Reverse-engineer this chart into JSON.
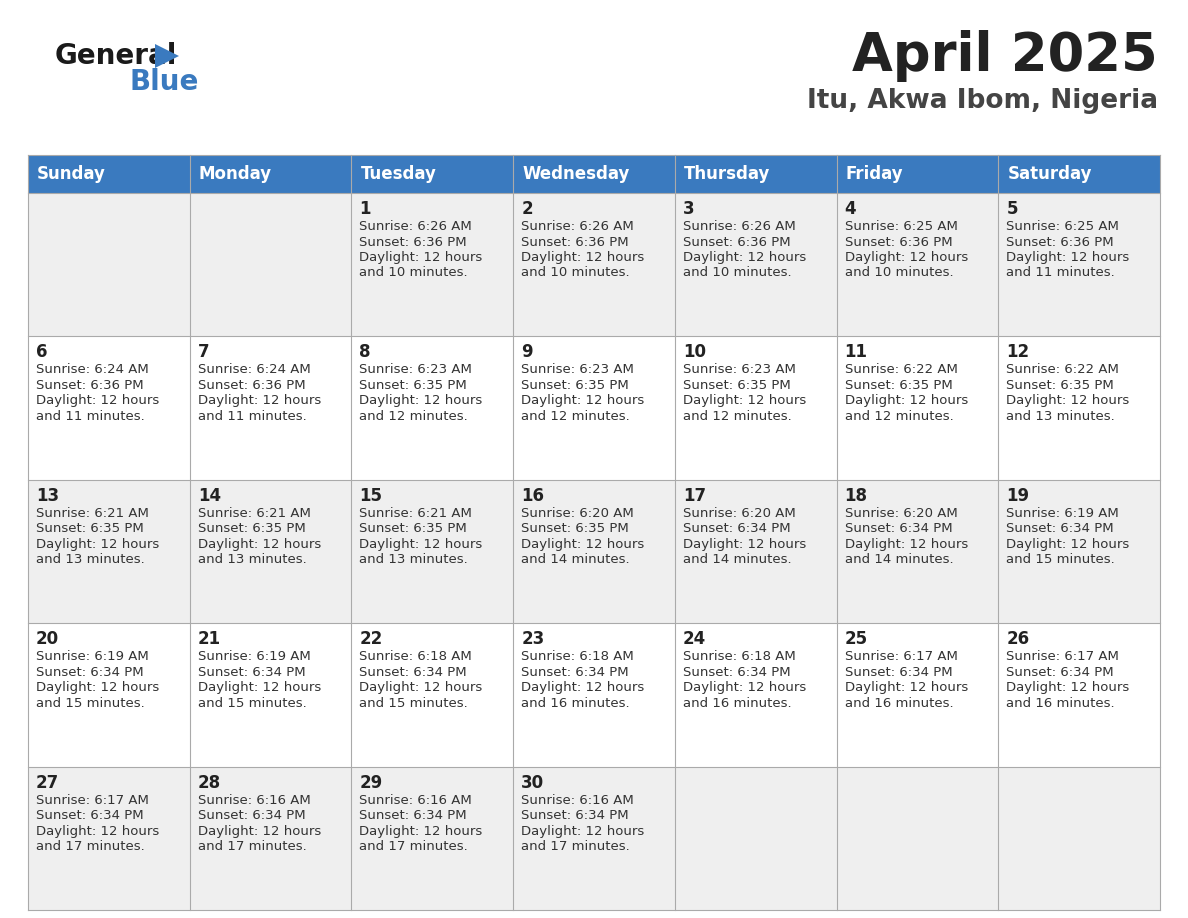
{
  "title": "April 2025",
  "subtitle": "Itu, Akwa Ibom, Nigeria",
  "header_color": "#3a7abf",
  "header_text_color": "#ffffff",
  "text_color": "#333333",
  "days_of_week": [
    "Sunday",
    "Monday",
    "Tuesday",
    "Wednesday",
    "Thursday",
    "Friday",
    "Saturday"
  ],
  "weeks": [
    [
      {
        "day": "",
        "sunrise": "",
        "sunset": "",
        "daylight1": "",
        "daylight2": ""
      },
      {
        "day": "",
        "sunrise": "",
        "sunset": "",
        "daylight1": "",
        "daylight2": ""
      },
      {
        "day": "1",
        "sunrise": "6:26 AM",
        "sunset": "6:36 PM",
        "daylight1": "Daylight: 12 hours",
        "daylight2": "and 10 minutes."
      },
      {
        "day": "2",
        "sunrise": "6:26 AM",
        "sunset": "6:36 PM",
        "daylight1": "Daylight: 12 hours",
        "daylight2": "and 10 minutes."
      },
      {
        "day": "3",
        "sunrise": "6:26 AM",
        "sunset": "6:36 PM",
        "daylight1": "Daylight: 12 hours",
        "daylight2": "and 10 minutes."
      },
      {
        "day": "4",
        "sunrise": "6:25 AM",
        "sunset": "6:36 PM",
        "daylight1": "Daylight: 12 hours",
        "daylight2": "and 10 minutes."
      },
      {
        "day": "5",
        "sunrise": "6:25 AM",
        "sunset": "6:36 PM",
        "daylight1": "Daylight: 12 hours",
        "daylight2": "and 11 minutes."
      }
    ],
    [
      {
        "day": "6",
        "sunrise": "6:24 AM",
        "sunset": "6:36 PM",
        "daylight1": "Daylight: 12 hours",
        "daylight2": "and 11 minutes."
      },
      {
        "day": "7",
        "sunrise": "6:24 AM",
        "sunset": "6:36 PM",
        "daylight1": "Daylight: 12 hours",
        "daylight2": "and 11 minutes."
      },
      {
        "day": "8",
        "sunrise": "6:23 AM",
        "sunset": "6:35 PM",
        "daylight1": "Daylight: 12 hours",
        "daylight2": "and 12 minutes."
      },
      {
        "day": "9",
        "sunrise": "6:23 AM",
        "sunset": "6:35 PM",
        "daylight1": "Daylight: 12 hours",
        "daylight2": "and 12 minutes."
      },
      {
        "day": "10",
        "sunrise": "6:23 AM",
        "sunset": "6:35 PM",
        "daylight1": "Daylight: 12 hours",
        "daylight2": "and 12 minutes."
      },
      {
        "day": "11",
        "sunrise": "6:22 AM",
        "sunset": "6:35 PM",
        "daylight1": "Daylight: 12 hours",
        "daylight2": "and 12 minutes."
      },
      {
        "day": "12",
        "sunrise": "6:22 AM",
        "sunset": "6:35 PM",
        "daylight1": "Daylight: 12 hours",
        "daylight2": "and 13 minutes."
      }
    ],
    [
      {
        "day": "13",
        "sunrise": "6:21 AM",
        "sunset": "6:35 PM",
        "daylight1": "Daylight: 12 hours",
        "daylight2": "and 13 minutes."
      },
      {
        "day": "14",
        "sunrise": "6:21 AM",
        "sunset": "6:35 PM",
        "daylight1": "Daylight: 12 hours",
        "daylight2": "and 13 minutes."
      },
      {
        "day": "15",
        "sunrise": "6:21 AM",
        "sunset": "6:35 PM",
        "daylight1": "Daylight: 12 hours",
        "daylight2": "and 13 minutes."
      },
      {
        "day": "16",
        "sunrise": "6:20 AM",
        "sunset": "6:35 PM",
        "daylight1": "Daylight: 12 hours",
        "daylight2": "and 14 minutes."
      },
      {
        "day": "17",
        "sunrise": "6:20 AM",
        "sunset": "6:34 PM",
        "daylight1": "Daylight: 12 hours",
        "daylight2": "and 14 minutes."
      },
      {
        "day": "18",
        "sunrise": "6:20 AM",
        "sunset": "6:34 PM",
        "daylight1": "Daylight: 12 hours",
        "daylight2": "and 14 minutes."
      },
      {
        "day": "19",
        "sunrise": "6:19 AM",
        "sunset": "6:34 PM",
        "daylight1": "Daylight: 12 hours",
        "daylight2": "and 15 minutes."
      }
    ],
    [
      {
        "day": "20",
        "sunrise": "6:19 AM",
        "sunset": "6:34 PM",
        "daylight1": "Daylight: 12 hours",
        "daylight2": "and 15 minutes."
      },
      {
        "day": "21",
        "sunrise": "6:19 AM",
        "sunset": "6:34 PM",
        "daylight1": "Daylight: 12 hours",
        "daylight2": "and 15 minutes."
      },
      {
        "day": "22",
        "sunrise": "6:18 AM",
        "sunset": "6:34 PM",
        "daylight1": "Daylight: 12 hours",
        "daylight2": "and 15 minutes."
      },
      {
        "day": "23",
        "sunrise": "6:18 AM",
        "sunset": "6:34 PM",
        "daylight1": "Daylight: 12 hours",
        "daylight2": "and 16 minutes."
      },
      {
        "day": "24",
        "sunrise": "6:18 AM",
        "sunset": "6:34 PM",
        "daylight1": "Daylight: 12 hours",
        "daylight2": "and 16 minutes."
      },
      {
        "day": "25",
        "sunrise": "6:17 AM",
        "sunset": "6:34 PM",
        "daylight1": "Daylight: 12 hours",
        "daylight2": "and 16 minutes."
      },
      {
        "day": "26",
        "sunrise": "6:17 AM",
        "sunset": "6:34 PM",
        "daylight1": "Daylight: 12 hours",
        "daylight2": "and 16 minutes."
      }
    ],
    [
      {
        "day": "27",
        "sunrise": "6:17 AM",
        "sunset": "6:34 PM",
        "daylight1": "Daylight: 12 hours",
        "daylight2": "and 17 minutes."
      },
      {
        "day": "28",
        "sunrise": "6:16 AM",
        "sunset": "6:34 PM",
        "daylight1": "Daylight: 12 hours",
        "daylight2": "and 17 minutes."
      },
      {
        "day": "29",
        "sunrise": "6:16 AM",
        "sunset": "6:34 PM",
        "daylight1": "Daylight: 12 hours",
        "daylight2": "and 17 minutes."
      },
      {
        "day": "30",
        "sunrise": "6:16 AM",
        "sunset": "6:34 PM",
        "daylight1": "Daylight: 12 hours",
        "daylight2": "and 17 minutes."
      },
      {
        "day": "",
        "sunrise": "",
        "sunset": "",
        "daylight1": "",
        "daylight2": ""
      },
      {
        "day": "",
        "sunrise": "",
        "sunset": "",
        "daylight1": "",
        "daylight2": ""
      },
      {
        "day": "",
        "sunrise": "",
        "sunset": "",
        "daylight1": "",
        "daylight2": ""
      }
    ]
  ],
  "logo_general_color": "#1a1a1a",
  "logo_blue_color": "#3a7abf",
  "logo_triangle_color": "#3a7abf"
}
